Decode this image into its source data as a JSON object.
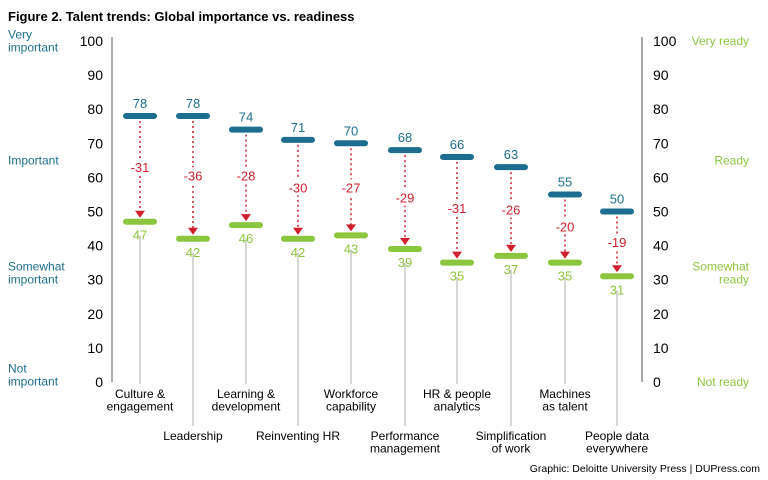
{
  "title": "Figure 2. Talent trends: Global importance vs. readiness",
  "source": "Graphic: Deloitte University Press  |  DUPress.com",
  "colors": {
    "importance": "#1d6e8e",
    "readiness": "#8cc63f",
    "gap": "#d0202e"
  },
  "chart_data": {
    "type": "dumbbell",
    "ylim": [
      0,
      100
    ],
    "yticks": [
      0,
      10,
      20,
      30,
      40,
      50,
      60,
      70,
      80,
      90,
      100
    ],
    "left_axis_words": [
      {
        "value": 100,
        "lines": [
          "Very",
          "important"
        ]
      },
      {
        "value": 65,
        "lines": [
          "Important"
        ]
      },
      {
        "value": 32,
        "lines": [
          "Somewhat",
          "important"
        ]
      },
      {
        "value": 2,
        "lines": [
          "Not",
          "important"
        ]
      }
    ],
    "right_axis_words": [
      {
        "value": 100,
        "lines": [
          "Very ready"
        ]
      },
      {
        "value": 65,
        "lines": [
          "Ready"
        ]
      },
      {
        "value": 32,
        "lines": [
          "Somewhat",
          "ready"
        ]
      },
      {
        "value": 0,
        "lines": [
          "Not ready"
        ]
      }
    ],
    "categories": [
      {
        "lines": [
          "Culture &",
          "engagement"
        ],
        "row": 0
      },
      {
        "lines": [
          "Leadership"
        ],
        "row": 1
      },
      {
        "lines": [
          "Learning &",
          "development"
        ],
        "row": 0
      },
      {
        "lines": [
          "Reinventing HR"
        ],
        "row": 1
      },
      {
        "lines": [
          "Workforce",
          "capability"
        ],
        "row": 0
      },
      {
        "lines": [
          "Performance",
          "management"
        ],
        "row": 1
      },
      {
        "lines": [
          "HR & people",
          "analytics"
        ],
        "row": 0
      },
      {
        "lines": [
          "Simplification",
          "of work"
        ],
        "row": 1
      },
      {
        "lines": [
          "Machines",
          "as talent"
        ],
        "row": 0
      },
      {
        "lines": [
          "People data",
          "everywhere"
        ],
        "row": 1
      }
    ],
    "series": [
      {
        "values": [
          78,
          78,
          74,
          71,
          70,
          68,
          66,
          63,
          55,
          50
        ],
        "labels": [
          "78",
          "78",
          "74",
          "71",
          "70",
          "68",
          "66",
          "63",
          "55",
          "50"
        ]
      },
      {
        "values": [
          47,
          42,
          46,
          42,
          43,
          39,
          35,
          37,
          35,
          31
        ],
        "labels": [
          "47",
          "42",
          "46",
          "42",
          "43",
          "39",
          "35",
          "37",
          "35",
          "31"
        ]
      }
    ],
    "gaps": [
      "-31",
      "-36",
      "-28",
      "-30",
      "-27",
      "-29",
      "-31",
      "-26",
      "-20",
      "-19"
    ]
  }
}
